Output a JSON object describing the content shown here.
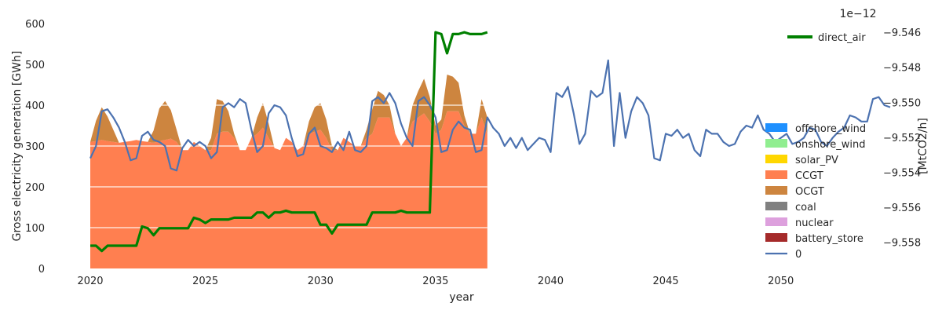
{
  "chart_data": {
    "type": "area",
    "xlabel": "year",
    "ylabel": "Gross electricity generation [GWh]",
    "y2label": "[MtCO2/h]",
    "y2_offset_text": "1e−12",
    "xlim": [
      2020,
      2054
    ],
    "ylim": [
      0,
      600
    ],
    "y2lim": [
      -9.5595,
      -9.5455
    ],
    "x_ticks": [
      2020,
      2025,
      2030,
      2035,
      2040,
      2045,
      2050
    ],
    "y_ticks": [
      0,
      100,
      200,
      300,
      400,
      500,
      600
    ],
    "y2_ticks": [
      -9.558,
      -9.556,
      -9.554,
      -9.552,
      -9.55,
      -9.548,
      -9.546
    ],
    "y2_tick_labels": [
      "−9.558",
      "−9.556",
      "−9.554",
      "−9.552",
      "−9.550",
      "−9.548",
      "−9.546"
    ],
    "grid": true,
    "legend_top": {
      "position": "top-right",
      "entries": [
        {
          "name": "direct_air",
          "color": "#008000",
          "kind": "line"
        }
      ]
    },
    "legend_right": {
      "position": "center-right",
      "entries": [
        {
          "name": "offshore_wind",
          "color": "#1e90ff",
          "kind": "patch"
        },
        {
          "name": "onshore_wind",
          "color": "#90ee90",
          "kind": "patch"
        },
        {
          "name": "solar_PV",
          "color": "#ffd700",
          "kind": "patch"
        },
        {
          "name": "CCGT",
          "color": "#ff7f50",
          "kind": "patch"
        },
        {
          "name": "OCGT",
          "color": "#cd853f",
          "kind": "patch"
        },
        {
          "name": "coal",
          "color": "#808080",
          "kind": "patch"
        },
        {
          "name": "nuclear",
          "color": "#dda0dd",
          "kind": "patch"
        },
        {
          "name": "battery_store",
          "color": "#a52a2a",
          "kind": "patch"
        },
        {
          "name": "0",
          "color": "#4c72b0",
          "kind": "line"
        }
      ]
    },
    "stack_x": [
      2020.0,
      2020.25,
      2020.5,
      2020.75,
      2021.0,
      2021.25,
      2021.5,
      2021.75,
      2022.0,
      2022.25,
      2022.5,
      2022.75,
      2023.0,
      2023.25,
      2023.5,
      2023.75,
      2024.0,
      2024.25,
      2024.5,
      2024.75,
      2025.0,
      2025.25,
      2025.5,
      2025.75,
      2026.0,
      2026.25,
      2026.5,
      2026.75,
      2027.0,
      2027.25,
      2027.5,
      2027.75,
      2028.0,
      2028.25,
      2028.5,
      2028.75,
      2029.0,
      2029.25,
      2029.5,
      2029.75,
      2030.0,
      2030.25,
      2030.5,
      2030.75,
      2031.0,
      2031.25,
      2031.5,
      2031.75,
      2032.0,
      2032.25,
      2032.5,
      2032.75,
      2033.0,
      2033.25,
      2033.5,
      2033.75,
      2034.0,
      2034.25,
      2034.5,
      2034.75,
      2035.0,
      2035.25,
      2035.5,
      2035.75,
      2036.0,
      2036.25,
      2036.5,
      2036.75,
      2037.0,
      2037.25
    ],
    "ccgt": [
      310,
      312,
      315,
      312,
      310,
      308,
      310,
      312,
      315,
      312,
      310,
      308,
      312,
      315,
      318,
      310,
      290,
      290,
      310,
      300,
      290,
      290,
      330,
      335,
      335,
      320,
      290,
      290,
      320,
      330,
      345,
      320,
      295,
      290,
      320,
      310,
      290,
      300,
      330,
      335,
      340,
      320,
      290,
      290,
      320,
      310,
      300,
      300,
      320,
      330,
      370,
      370,
      370,
      330,
      300,
      320,
      360,
      370,
      380,
      360,
      330,
      340,
      385,
      385,
      385,
      350,
      330,
      330,
      370,
      330
    ],
    "ocgt": [
      0,
      50,
      80,
      60,
      30,
      0,
      0,
      0,
      0,
      0,
      0,
      30,
      80,
      95,
      70,
      30,
      0,
      0,
      0,
      0,
      0,
      30,
      85,
      75,
      50,
      10,
      0,
      0,
      0,
      40,
      60,
      35,
      0,
      0,
      0,
      0,
      0,
      0,
      30,
      60,
      65,
      45,
      10,
      0,
      0,
      0,
      0,
      0,
      20,
      60,
      65,
      55,
      30,
      0,
      0,
      0,
      40,
      65,
      85,
      60,
      20,
      25,
      90,
      85,
      70,
      25,
      0,
      0,
      45,
      40
    ],
    "series_0": {
      "name": "0",
      "x": [
        2020.0,
        2020.25,
        2020.5,
        2020.75,
        2021.0,
        2021.25,
        2021.5,
        2021.75,
        2022.0,
        2022.25,
        2022.5,
        2022.75,
        2023.0,
        2023.25,
        2023.5,
        2023.75,
        2024.0,
        2024.25,
        2024.5,
        2024.75,
        2025.0,
        2025.25,
        2025.5,
        2025.75,
        2026.0,
        2026.25,
        2026.5,
        2026.75,
        2027.0,
        2027.25,
        2027.5,
        2027.75,
        2028.0,
        2028.25,
        2028.5,
        2028.75,
        2029.0,
        2029.25,
        2029.5,
        2029.75,
        2030.0,
        2030.25,
        2030.5,
        2030.75,
        2031.0,
        2031.25,
        2031.5,
        2031.75,
        2032.0,
        2032.25,
        2032.5,
        2032.75,
        2033.0,
        2033.25,
        2033.5,
        2033.75,
        2034.0,
        2034.25,
        2034.5,
        2034.75,
        2035.0,
        2035.25,
        2035.5,
        2035.75,
        2036.0,
        2036.25,
        2036.5,
        2036.75,
        2037.0,
        2037.25,
        2037.5,
        2037.75,
        2038.0,
        2038.25,
        2038.5,
        2038.75,
        2039.0,
        2039.25,
        2039.5,
        2039.75,
        2040.0,
        2040.25,
        2040.5,
        2040.75,
        2041.0,
        2041.25,
        2041.5,
        2041.75,
        2042.0,
        2042.25,
        2042.5,
        2042.75,
        2043.0,
        2043.25,
        2043.5,
        2043.75,
        2044.0,
        2044.25,
        2044.5,
        2044.75,
        2045.0,
        2045.25,
        2045.5,
        2045.75,
        2046.0,
        2046.25,
        2046.5,
        2046.75,
        2047.0,
        2047.25,
        2047.5,
        2047.75,
        2048.0,
        2048.25,
        2048.5,
        2048.75,
        2049.0,
        2049.25,
        2049.5,
        2049.75,
        2050.0,
        2050.25,
        2050.5,
        2050.75,
        2051.0,
        2051.25,
        2051.5,
        2051.75,
        2052.0,
        2052.25,
        2052.5,
        2052.75,
        2053.0,
        2053.25,
        2053.5,
        2053.75,
        2054.0,
        2054.25,
        2054.5,
        2054.75
      ],
      "y": [
        270,
        300,
        385,
        390,
        370,
        345,
        310,
        265,
        270,
        325,
        335,
        315,
        310,
        300,
        245,
        240,
        295,
        315,
        300,
        310,
        300,
        270,
        285,
        395,
        405,
        395,
        415,
        405,
        340,
        285,
        300,
        380,
        400,
        395,
        375,
        320,
        275,
        280,
        330,
        345,
        300,
        295,
        285,
        310,
        290,
        335,
        290,
        285,
        300,
        410,
        420,
        405,
        430,
        405,
        355,
        320,
        300,
        410,
        420,
        400,
        370,
        285,
        290,
        340,
        360,
        345,
        340,
        285,
        290,
        370,
        345,
        330,
        300,
        320,
        295,
        320,
        290,
        305,
        320,
        315,
        285,
        430,
        420,
        445,
        380,
        305,
        330,
        435,
        420,
        430,
        510,
        300,
        430,
        320,
        385,
        420,
        405,
        375,
        270,
        265,
        330,
        325,
        340,
        320,
        330,
        290,
        275,
        340,
        330,
        330,
        310,
        300,
        305,
        335,
        350,
        345,
        375,
        340,
        330,
        310,
        320,
        330,
        305,
        310,
        320,
        345,
        340,
        310,
        300,
        320,
        335,
        345,
        375,
        370,
        360,
        360,
        415,
        420,
        400,
        395
      ]
    },
    "series_direct_air": {
      "name": "direct_air",
      "x": [
        2020.0,
        2020.25,
        2020.5,
        2020.75,
        2021.0,
        2021.25,
        2021.5,
        2021.75,
        2022.0,
        2022.25,
        2022.5,
        2022.75,
        2023.0,
        2023.25,
        2023.5,
        2023.75,
        2024.0,
        2024.25,
        2024.5,
        2024.75,
        2025.0,
        2025.25,
        2025.5,
        2025.75,
        2026.0,
        2026.25,
        2026.5,
        2026.75,
        2027.0,
        2027.25,
        2027.5,
        2027.75,
        2028.0,
        2028.25,
        2028.5,
        2028.75,
        2029.0,
        2029.25,
        2029.5,
        2029.75,
        2030.0,
        2030.25,
        2030.5,
        2030.75,
        2031.0,
        2031.25,
        2031.5,
        2031.75,
        2032.0,
        2032.25,
        2032.5,
        2032.75,
        2033.0,
        2033.25,
        2033.5,
        2033.75,
        2034.0,
        2034.25,
        2034.5,
        2034.75,
        2035.0,
        2035.25,
        2035.5,
        2035.75,
        2036.0,
        2036.25,
        2036.5,
        2036.75,
        2037.0,
        2037.25
      ],
      "y": [
        -9.5582,
        -9.5582,
        -9.5585,
        -9.5582,
        -9.5582,
        -9.5582,
        -9.5582,
        -9.5582,
        -9.5582,
        -9.5571,
        -9.5572,
        -9.5576,
        -9.5572,
        -9.5572,
        -9.5572,
        -9.5572,
        -9.5572,
        -9.5572,
        -9.5566,
        -9.5567,
        -9.5569,
        -9.5567,
        -9.5567,
        -9.5567,
        -9.5567,
        -9.5566,
        -9.5566,
        -9.5566,
        -9.5566,
        -9.5563,
        -9.5563,
        -9.5566,
        -9.5563,
        -9.5563,
        -9.5562,
        -9.5563,
        -9.5563,
        -9.5563,
        -9.5563,
        -9.5563,
        -9.557,
        -9.557,
        -9.5575,
        -9.557,
        -9.557,
        -9.557,
        -9.557,
        -9.557,
        -9.557,
        -9.5563,
        -9.5563,
        -9.5563,
        -9.5563,
        -9.5563,
        -9.5562,
        -9.5563,
        -9.5563,
        -9.5563,
        -9.5563,
        -9.5563,
        -9.546,
        -9.5461,
        -9.5472,
        -9.5461,
        -9.5461,
        -9.546,
        -9.5461,
        -9.5461,
        -9.5461,
        -9.546
      ]
    }
  }
}
